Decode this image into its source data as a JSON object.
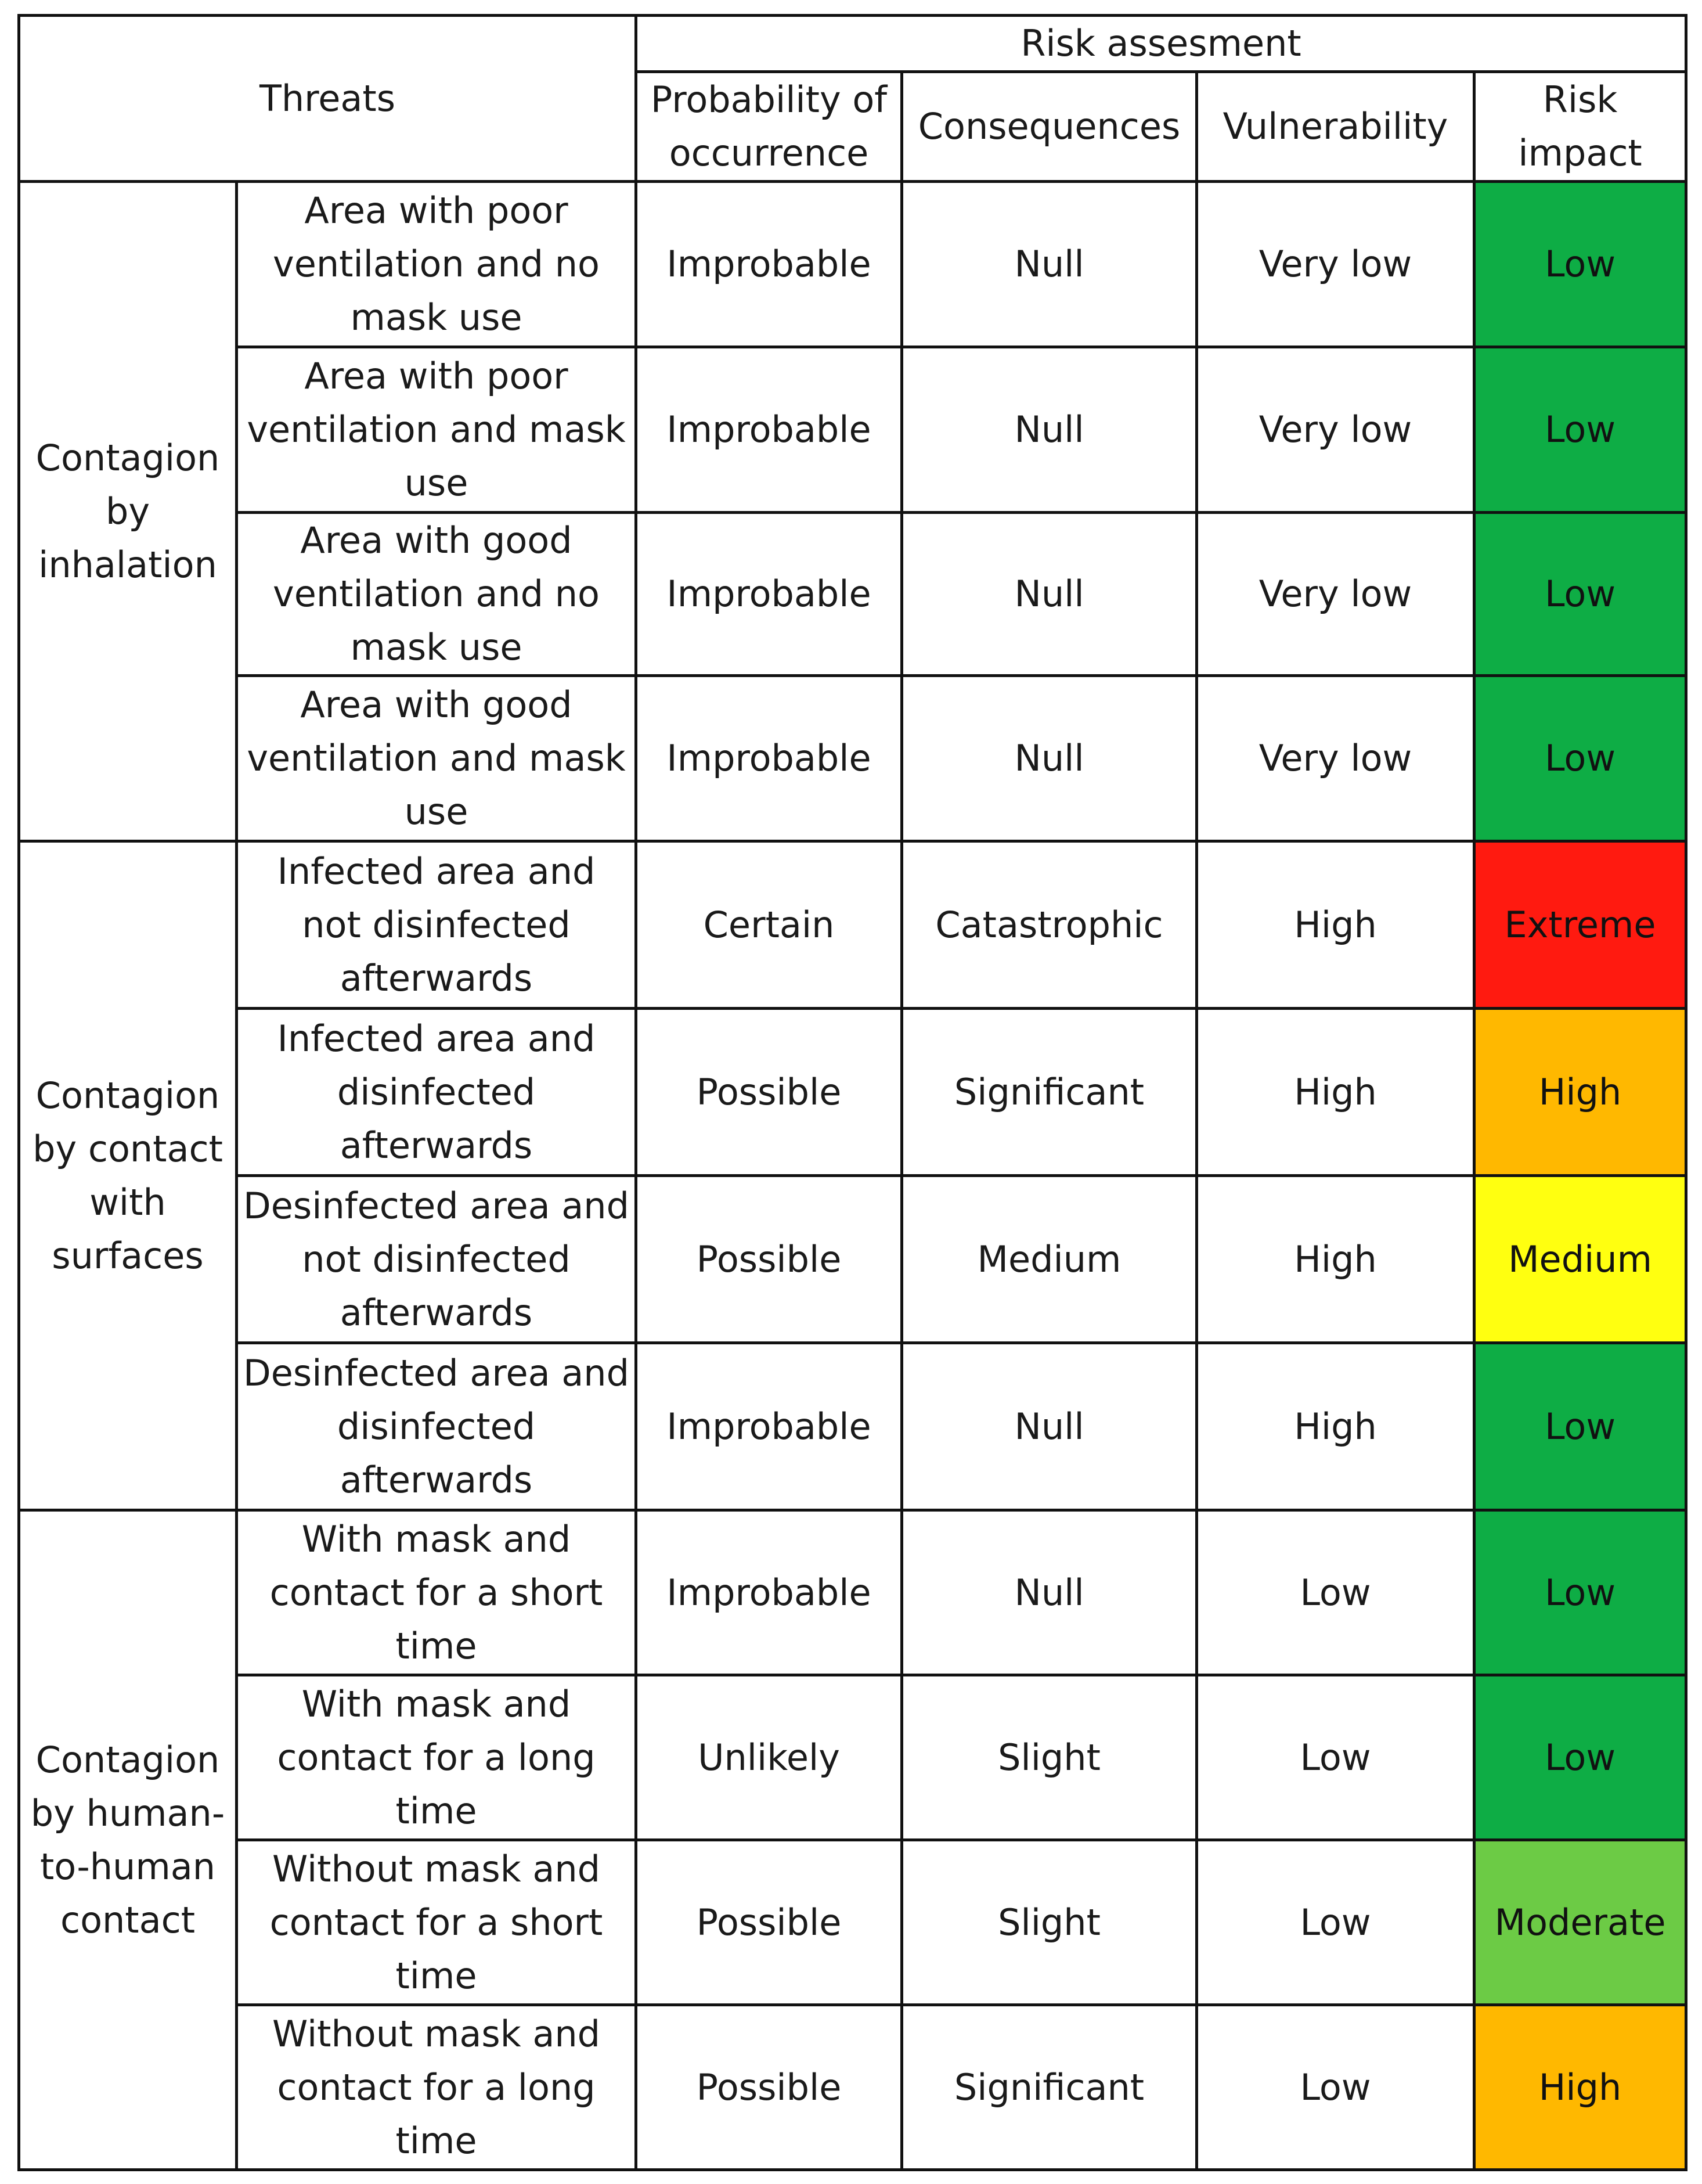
{
  "header": {
    "threats": "Threats",
    "risk_assessment": "Risk assesment",
    "columns": {
      "probability": "Probability of occurrence",
      "consequences": "Consequences",
      "vulnerability": "Vulnerability",
      "risk_impact": "Risk impact"
    }
  },
  "impact_colors": {
    "Low": "#0ead45",
    "Extreme": "#ff1a10",
    "High": "#ffb800",
    "Medium": "#ffff10",
    "Moderate": "#6ccb45"
  },
  "groups": [
    {
      "label": "Contagion by inhalation",
      "rows": [
        {
          "threat": "Area with poor ventilation and no mask use",
          "probability": "Improbable",
          "consequences": "Null",
          "vulnerability": "Very low",
          "impact": "Low"
        },
        {
          "threat": "Area with poor ventilation and mask use",
          "probability": "Improbable",
          "consequences": "Null",
          "vulnerability": "Very low",
          "impact": "Low"
        },
        {
          "threat": "Area with good ventilation and no mask use",
          "probability": "Improbable",
          "consequences": "Null",
          "vulnerability": "Very low",
          "impact": "Low"
        },
        {
          "threat": "Area with good ventilation and mask use",
          "probability": "Improbable",
          "consequences": "Null",
          "vulnerability": "Very low",
          "impact": "Low"
        }
      ]
    },
    {
      "label": "Contagion by contact with surfaces",
      "rows": [
        {
          "threat": "Infected area and not disinfected afterwards",
          "probability": "Certain",
          "consequences": "Catastrophic",
          "vulnerability": "High",
          "impact": "Extreme"
        },
        {
          "threat": "Infected area and disinfected afterwards",
          "probability": "Possible",
          "consequences": "Significant",
          "vulnerability": "High",
          "impact": "High"
        },
        {
          "threat": "Desinfected area and not disinfected afterwards",
          "probability": "Possible",
          "consequences": "Medium",
          "vulnerability": "High",
          "impact": "Medium"
        },
        {
          "threat": "Desinfected area and disinfected afterwards",
          "probability": "Improbable",
          "consequences": "Null",
          "vulnerability": "High",
          "impact": "Low"
        }
      ]
    },
    {
      "label": "Contagion by human-to-human contact",
      "rows": [
        {
          "threat": "With mask and contact for a short time",
          "probability": "Improbable",
          "consequences": "Null",
          "vulnerability": "Low",
          "impact": "Low"
        },
        {
          "threat": "With mask and contact for a long time",
          "probability": "Unlikely",
          "consequences": "Slight",
          "vulnerability": "Low",
          "impact": "Low"
        },
        {
          "threat": "Without mask and contact for a short time",
          "probability": "Possible",
          "consequences": "Slight",
          "vulnerability": "Low",
          "impact": "Moderate"
        },
        {
          "threat": "Without mask and contact for a long time",
          "probability": "Possible",
          "consequences": "Significant",
          "vulnerability": "Low",
          "impact": "High"
        }
      ]
    }
  ]
}
